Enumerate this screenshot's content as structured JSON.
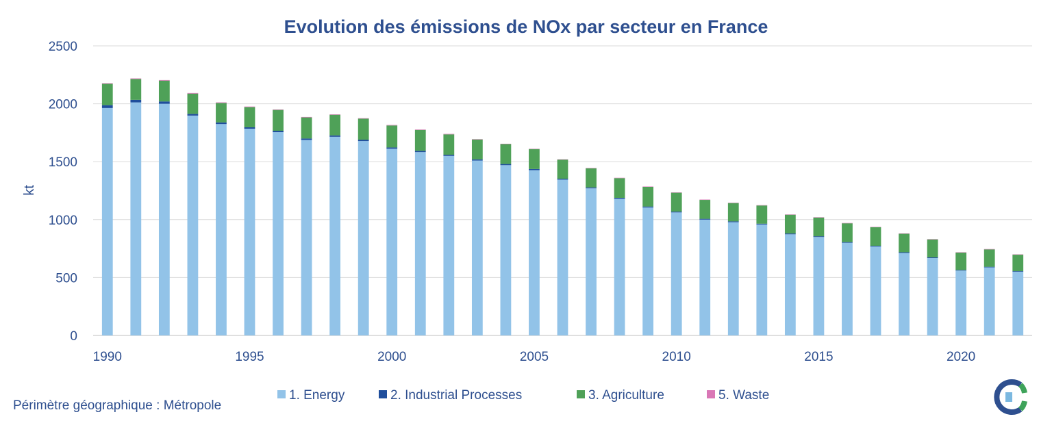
{
  "chart_data": {
    "type": "bar",
    "stacked": true,
    "title": "Evolution des émissions de NOx par secteur en France",
    "ylabel": "kt",
    "xlabel": "",
    "ylim": [
      0,
      2500
    ],
    "yticks": [
      0,
      500,
      1000,
      1500,
      2000,
      2500
    ],
    "xtick_labels": [
      "1990",
      "1995",
      "2000",
      "2005",
      "2010",
      "2015",
      "2020"
    ],
    "grid": true,
    "legend_position": "bottom",
    "categories": [
      "1990",
      "1991",
      "1992",
      "1993",
      "1994",
      "1995",
      "1996",
      "1997",
      "1998",
      "1999",
      "2000",
      "2001",
      "2002",
      "2003",
      "2004",
      "2005",
      "2006",
      "2007",
      "2008",
      "2009",
      "2010",
      "2011",
      "2012",
      "2013",
      "2014",
      "2015",
      "2016",
      "2017",
      "2018",
      "2019",
      "2020",
      "2021",
      "2022"
    ],
    "series": [
      {
        "name": "1. Energy",
        "color": "#92c3e8",
        "values": [
          1963,
          2012,
          2000,
          1898,
          1825,
          1785,
          1755,
          1688,
          1715,
          1678,
          1612,
          1583,
          1550,
          1510,
          1470,
          1427,
          1345,
          1270,
          1180,
          1105,
          1062,
          1000,
          978,
          958,
          873,
          850,
          800,
          768,
          712,
          668,
          560,
          588,
          550
        ]
      },
      {
        "name": "2.  Industrial Processes",
        "color": "#1f4e9c",
        "values": [
          25,
          22,
          20,
          15,
          14,
          12,
          12,
          12,
          12,
          12,
          11,
          11,
          10,
          10,
          10,
          10,
          8,
          8,
          8,
          8,
          7,
          7,
          7,
          7,
          7,
          6,
          6,
          6,
          6,
          6,
          5,
          5,
          5
        ]
      },
      {
        "name": "3.  Agriculture",
        "color": "#4fa158",
        "values": [
          185,
          180,
          180,
          175,
          168,
          175,
          180,
          182,
          178,
          182,
          190,
          180,
          176,
          172,
          172,
          172,
          165,
          165,
          170,
          170,
          163,
          163,
          158,
          157,
          162,
          162,
          162,
          160,
          160,
          155,
          150,
          150,
          142
        ]
      },
      {
        "name": "5.  Waste",
        "color": "#d977b6",
        "values": [
          5,
          5,
          5,
          5,
          5,
          4,
          4,
          4,
          4,
          4,
          4,
          4,
          4,
          3,
          3,
          3,
          3,
          3,
          3,
          3,
          3,
          3,
          3,
          3,
          3,
          3,
          3,
          3,
          3,
          3,
          3,
          3,
          3
        ]
      }
    ]
  },
  "footer": {
    "scope_text": "Périmètre géographique : Métropole"
  },
  "logo": {
    "icon": "citepa-logo-icon",
    "colors": [
      "#2e4f8f",
      "#3ea35a",
      "#7bb8e0"
    ]
  }
}
